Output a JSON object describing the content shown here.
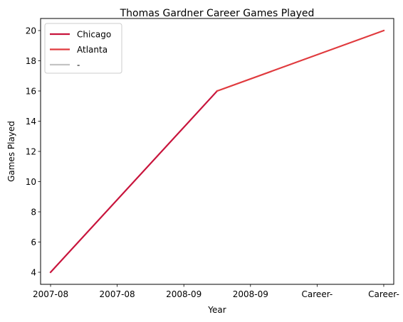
{
  "chart_data": {
    "type": "line",
    "title": "Thomas Gardner  Career Games Played",
    "xlabel": "Year",
    "ylabel": "Games Played",
    "x_ticks": [
      "2007-08",
      "2007-08",
      "2008-09",
      "2008-09",
      "Career-",
      "Career-"
    ],
    "xlim": [
      -0.15,
      5.15
    ],
    "ylim": [
      3.2,
      20.8
    ],
    "y_ticks": [
      4,
      6,
      8,
      10,
      12,
      14,
      16,
      18,
      20
    ],
    "grid": false,
    "legend_position": "top-left",
    "series": [
      {
        "name": "Chicago",
        "color": "#c8143c",
        "x": [
          0,
          2.5
        ],
        "y": [
          4,
          16
        ]
      },
      {
        "name": "Atlanta",
        "color": "#e03a3e",
        "x": [
          2.5,
          5
        ],
        "y": [
          16,
          20
        ]
      },
      {
        "name": "-",
        "color": "#c4c4c4",
        "x": [],
        "y": []
      }
    ]
  }
}
